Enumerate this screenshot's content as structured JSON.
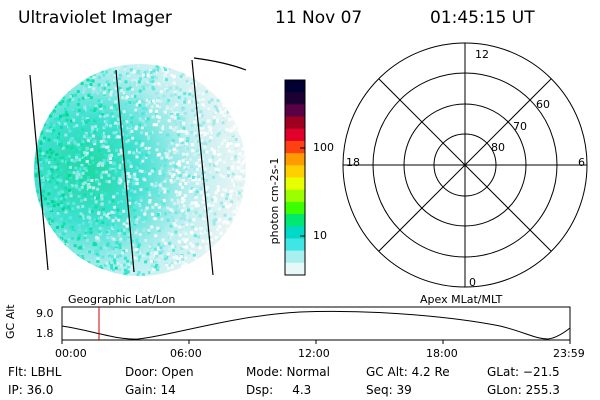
{
  "header": {
    "instrument": "Ultraviolet Imager",
    "date": "11 Nov 07",
    "time": "01:45:15 UT"
  },
  "colorbar": {
    "unit_label": "photon cm-2s-1",
    "ticks": [
      "100",
      "10"
    ],
    "colors": [
      "#000033",
      "#1a0033",
      "#5a0046",
      "#a00020",
      "#e0002a",
      "#ff4010",
      "#ff9a00",
      "#ffd000",
      "#e8ff00",
      "#9cff00",
      "#3cff00",
      "#00e870",
      "#00d8c8",
      "#40e6e6",
      "#a8f0f0",
      "#e6f8f8"
    ]
  },
  "polar_grid": {
    "mlt_labels": {
      "top": "12",
      "left": "18",
      "right": "6",
      "bottom": "0"
    },
    "mlat_labels": [
      "60",
      "70",
      "80"
    ]
  },
  "panel_labels": {
    "left": "Geographic Lat/Lon",
    "right": "Apex MLat/MLT"
  },
  "altitude_plot": {
    "ylabel": "GC Alt",
    "yticks": [
      "9.0",
      "1.8"
    ],
    "xticks": [
      "00:00",
      "06:00",
      "12:00",
      "18:00",
      "23:59"
    ]
  },
  "info": {
    "flt": "Flt: LBHL",
    "ip": "IP: 36.0",
    "door": "Door: Open",
    "gain": "Gain: 14",
    "mode": "Mode: Normal",
    "dsp": "Dsp:     4.3",
    "gc_alt": "GC Alt: 4.2 Re",
    "seq": "Seq: 39",
    "glat": "GLat: −21.5",
    "glon": "GLon: 255.3"
  }
}
